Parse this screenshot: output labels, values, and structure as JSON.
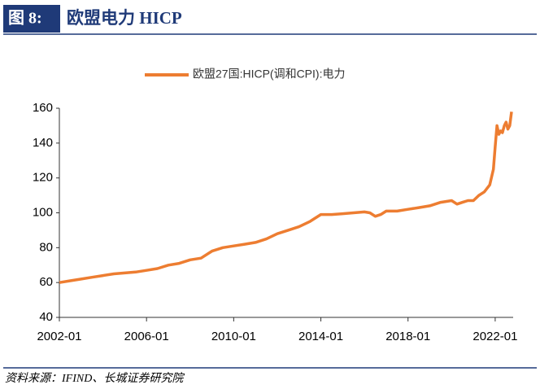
{
  "header": {
    "label": "图 8:",
    "title": "欧盟电力 HICP"
  },
  "chart_data": {
    "type": "line",
    "x": [
      "2002-01",
      "2002-07",
      "2003-01",
      "2003-07",
      "2004-01",
      "2004-07",
      "2005-01",
      "2005-07",
      "2006-01",
      "2006-07",
      "2007-01",
      "2007-07",
      "2008-01",
      "2008-07",
      "2009-01",
      "2009-07",
      "2010-01",
      "2010-07",
      "2011-01",
      "2011-07",
      "2012-01",
      "2012-07",
      "2013-01",
      "2013-07",
      "2013-10",
      "2014-01",
      "2014-07",
      "2015-01",
      "2015-07",
      "2016-01",
      "2016-04",
      "2016-07",
      "2016-10",
      "2017-01",
      "2017-07",
      "2018-01",
      "2018-07",
      "2019-01",
      "2019-07",
      "2020-01",
      "2020-04",
      "2020-07",
      "2020-10",
      "2021-01",
      "2021-04",
      "2021-07",
      "2021-10",
      "2021-12",
      "2022-01",
      "2022-02",
      "2022-03",
      "2022-04",
      "2022-05",
      "2022-06",
      "2022-07",
      "2022-08",
      "2022-09",
      "2022-10"
    ],
    "series": [
      {
        "name": "欧盟27国:HICP(调和CPI):电力",
        "color": "#ed7d31",
        "values": [
          60,
          61,
          62,
          63,
          64,
          65,
          65.5,
          66,
          67,
          68,
          70,
          71,
          73,
          74,
          78,
          80,
          81,
          82,
          83,
          85,
          88,
          90,
          92,
          95,
          97,
          99,
          99,
          99.5,
          100,
          100.5,
          100,
          98,
          99,
          101,
          101,
          102,
          103,
          104,
          106,
          107,
          105,
          106,
          107,
          107,
          110,
          112,
          116,
          125,
          138,
          150,
          145,
          147,
          146,
          150,
          152,
          148,
          150,
          158
        ]
      }
    ],
    "xlim": [
      "2002-01",
      "2022-10"
    ],
    "xticks": [
      "2002-01",
      "2006-01",
      "2010-01",
      "2014-01",
      "2018-01",
      "2022-01"
    ],
    "ylim": [
      40,
      160
    ],
    "yticks": [
      40,
      60,
      80,
      100,
      120,
      140,
      160
    ]
  },
  "source": "资料来源：IFIND、长城证券研究院"
}
